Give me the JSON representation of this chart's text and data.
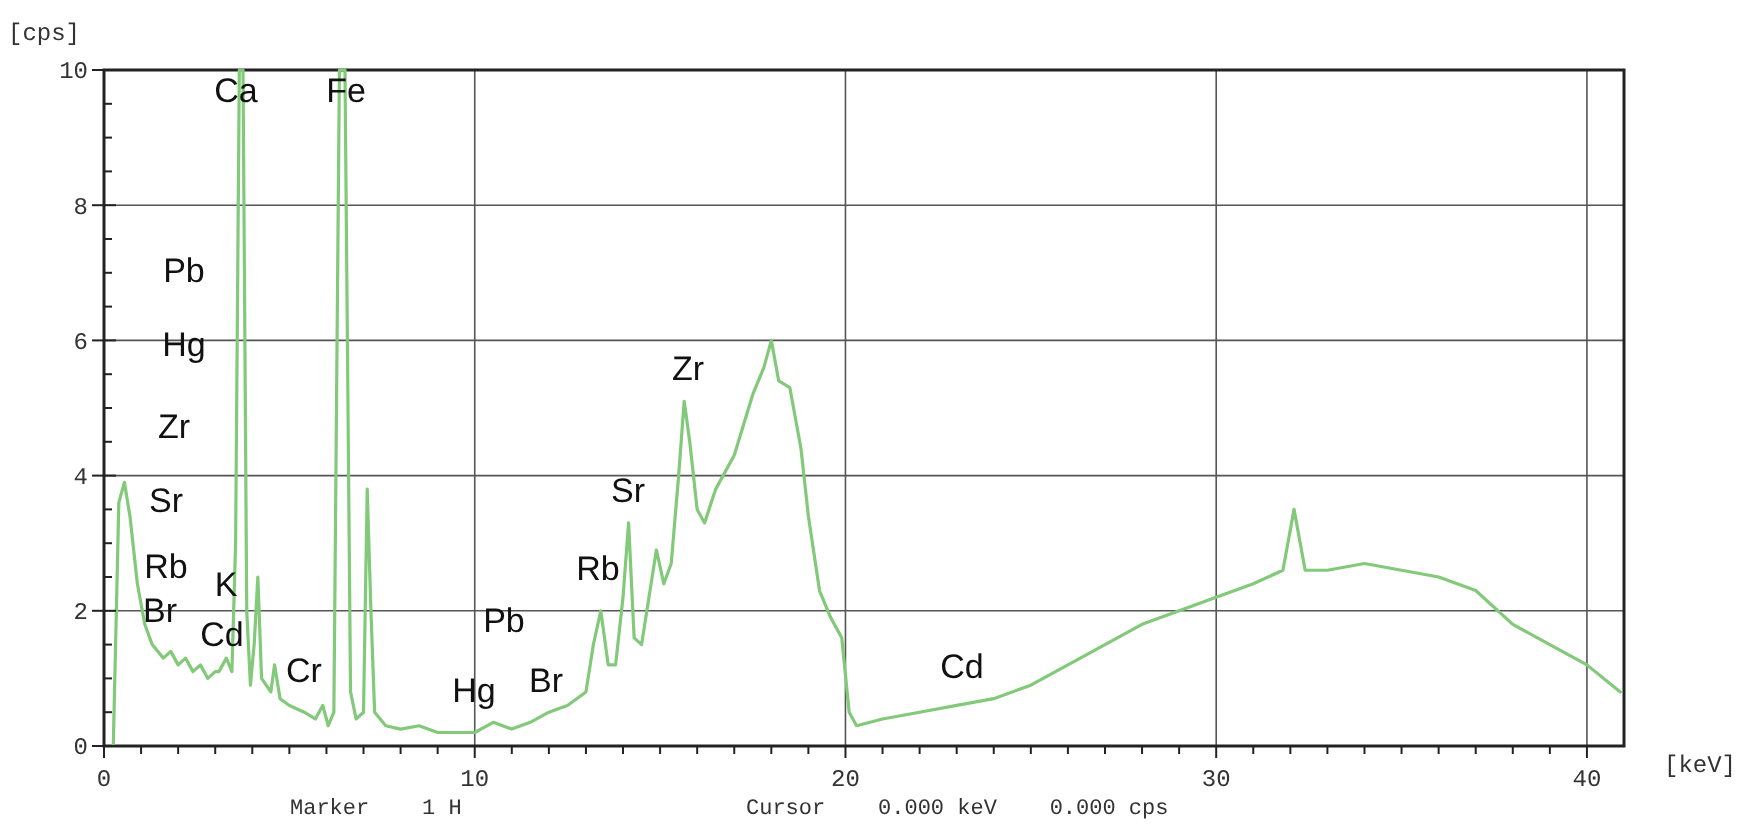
{
  "chart_data": {
    "type": "line",
    "xlabel": "[keV]",
    "ylabel": "[cps]",
    "xlim": [
      0,
      41
    ],
    "ylim": [
      0,
      10
    ],
    "xticks": [
      0,
      {
        "value": 1,
        "label": null
      },
      {
        "value": 2,
        "label": null
      },
      {
        "value": 3,
        "label": null
      },
      {
        "value": 4,
        "label": null
      },
      {
        "value": 5,
        "label": null
      },
      {
        "value": 6,
        "label": null
      },
      {
        "value": 7,
        "label": null
      },
      {
        "value": 8,
        "label": null
      },
      {
        "value": 9,
        "label": null
      },
      10,
      {
        "value": 11,
        "label": null
      },
      {
        "value": 12,
        "label": null
      },
      {
        "value": 13,
        "label": null
      },
      {
        "value": 14,
        "label": null
      },
      {
        "value": 15,
        "label": null
      },
      {
        "value": 16,
        "label": null
      },
      {
        "value": 17,
        "label": null
      },
      {
        "value": 18,
        "label": null
      },
      {
        "value": 19,
        "label": null
      },
      20,
      {
        "value": 21,
        "label": null
      },
      {
        "value": 22,
        "label": null
      },
      {
        "value": 23,
        "label": null
      },
      {
        "value": 24,
        "label": null
      },
      {
        "value": 25,
        "label": null
      },
      {
        "value": 26,
        "label": null
      },
      {
        "value": 27,
        "label": null
      },
      {
        "value": 28,
        "label": null
      },
      {
        "value": 29,
        "label": null
      },
      30,
      {
        "value": 31,
        "label": null
      },
      {
        "value": 32,
        "label": null
      },
      {
        "value": 33,
        "label": null
      },
      {
        "value": 34,
        "label": null
      },
      {
        "value": 35,
        "label": null
      },
      {
        "value": 36,
        "label": null
      },
      {
        "value": 37,
        "label": null
      },
      {
        "value": 38,
        "label": null
      },
      {
        "value": 39,
        "label": null
      },
      40
    ],
    "yticks": [
      0,
      {
        "value": 0.5,
        "label": null
      },
      {
        "value": 1,
        "label": null
      },
      {
        "value": 1.5,
        "label": null
      },
      2,
      {
        "value": 2.5,
        "label": null
      },
      {
        "value": 3,
        "label": null
      },
      {
        "value": 3.5,
        "label": null
      },
      4,
      {
        "value": 4.5,
        "label": null
      },
      {
        "value": 5,
        "label": null
      },
      {
        "value": 5.5,
        "label": null
      },
      6,
      {
        "value": 6.5,
        "label": null
      },
      {
        "value": 7,
        "label": null
      },
      {
        "value": 7.5,
        "label": null
      },
      8,
      {
        "value": 8.5,
        "label": null
      },
      {
        "value": 9,
        "label": null
      },
      {
        "value": 9.5,
        "label": null
      },
      10
    ],
    "grid": true,
    "marker": "none",
    "line_style": "solid",
    "series": [
      {
        "color": "#82c97a",
        "x": [
          0.25,
          0.4,
          0.55,
          0.7,
          0.9,
          1.1,
          1.3,
          1.6,
          1.8,
          2.0,
          2.2,
          2.4,
          2.6,
          2.8,
          3.0,
          3.1,
          3.3,
          3.45,
          3.55,
          3.65,
          3.75,
          3.85,
          3.95,
          4.05,
          4.15,
          4.25,
          4.5,
          4.6,
          4.75,
          5.0,
          5.4,
          5.7,
          5.9,
          6.05,
          6.2,
          6.35,
          6.5,
          6.65,
          6.8,
          7.0,
          7.1,
          7.2,
          7.3,
          7.6,
          8.0,
          8.5,
          9.0,
          9.5,
          10,
          10.5,
          11,
          11.5,
          12,
          12.5,
          13,
          13.2,
          13.4,
          13.6,
          13.8,
          14.0,
          14.15,
          14.3,
          14.5,
          14.7,
          14.9,
          15.1,
          15.3,
          15.5,
          15.65,
          15.8,
          16.0,
          16.2,
          16.5,
          17,
          17.5,
          17.8,
          18.0,
          18.2,
          18.5,
          18.8,
          19.0,
          19.3,
          19.6,
          19.9,
          20.1,
          20.3,
          21,
          22,
          23,
          24,
          25,
          26,
          27,
          28,
          29,
          30,
          31,
          31.8,
          32.1,
          32.4,
          33,
          34,
          35,
          36,
          37,
          38,
          39,
          40,
          40.9
        ],
        "values": [
          0,
          3.6,
          3.9,
          3.4,
          2.4,
          1.8,
          1.5,
          1.3,
          1.4,
          1.2,
          1.3,
          1.1,
          1.2,
          1.0,
          1.1,
          1.1,
          1.3,
          1.1,
          3.0,
          10,
          10,
          2.0,
          0.9,
          1.5,
          2.5,
          1.0,
          0.8,
          1.2,
          0.7,
          0.6,
          0.5,
          0.4,
          0.6,
          0.3,
          0.5,
          10,
          10,
          0.8,
          0.4,
          0.5,
          3.8,
          2.0,
          0.5,
          0.3,
          0.25,
          0.3,
          0.2,
          0.2,
          0.2,
          0.35,
          0.25,
          0.35,
          0.5,
          0.6,
          0.8,
          1.5,
          2.0,
          1.2,
          1.2,
          2.2,
          3.3,
          1.6,
          1.5,
          2.2,
          2.9,
          2.4,
          2.7,
          4.0,
          5.1,
          4.5,
          3.5,
          3.3,
          3.8,
          4.3,
          5.2,
          5.6,
          6.0,
          5.4,
          5.3,
          4.4,
          3.4,
          2.3,
          1.9,
          1.6,
          0.5,
          0.3,
          0.4,
          0.5,
          0.6,
          0.7,
          0.9,
          1.2,
          1.5,
          1.8,
          2.0,
          2.2,
          2.4,
          2.6,
          3.5,
          2.6,
          2.6,
          2.7,
          2.6,
          2.5,
          2.3,
          1.8,
          1.5,
          1.2,
          0.8
        ]
      }
    ],
    "annotations": [
      "Ca",
      "Fe",
      "Pb",
      "Hg",
      "Zr",
      "Sr",
      "Rb",
      "Br",
      "K",
      "Cd",
      "Cr",
      "Pb",
      "Hg",
      "Br",
      "Rb",
      "Sr",
      "Zr",
      "Cd",
      "Marker    1 H",
      "Cursor    0.000 keV    0.000 cps"
    ]
  }
}
